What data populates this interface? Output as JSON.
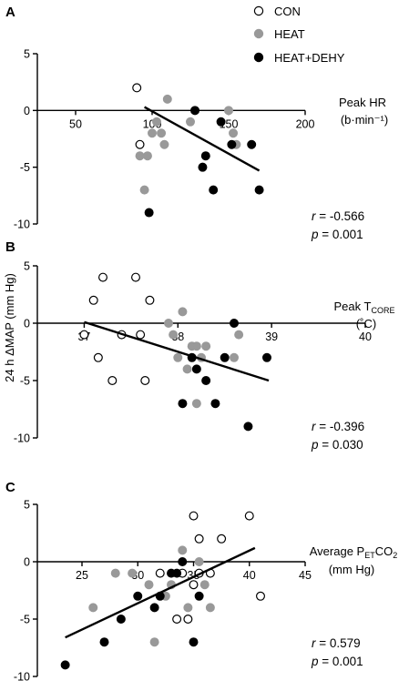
{
  "legend": [
    {
      "name": "CON",
      "fill": "#ffffff",
      "stroke": "#000000"
    },
    {
      "name": "HEAT",
      "fill": "#999999",
      "stroke": "#999999"
    },
    {
      "name": "HEAT+DEHY",
      "fill": "#000000",
      "stroke": "#000000"
    }
  ],
  "shared_ylabel": "24 h ΔMAP (mm Hg)",
  "chart_data": [
    {
      "type": "scatter",
      "panel": "A",
      "xlabel_line1": "Peak HR",
      "xlabel_line2": "(b·min⁻¹)",
      "xlim": [
        25,
        200
      ],
      "ylim": [
        -10,
        5
      ],
      "xticks": [
        50,
        100,
        150,
        200
      ],
      "yticks": [
        5,
        0,
        -5,
        -10
      ],
      "stat_r": "-0.566",
      "stat_p": "0.001",
      "fit": {
        "x": [
          95,
          170
        ],
        "y": [
          0.3,
          -5.3
        ]
      },
      "series": [
        {
          "name": "CON",
          "points": [
            [
              90,
              2
            ],
            [
              92,
              -3
            ]
          ]
        },
        {
          "name": "HEAT",
          "points": [
            [
              92,
              -4
            ],
            [
              95,
              -7
            ],
            [
              97,
              -4
            ],
            [
              100,
              -2
            ],
            [
              103,
              -1
            ],
            [
              106,
              -2
            ],
            [
              108,
              -3
            ],
            [
              110,
              1
            ],
            [
              125,
              -1
            ],
            [
              150,
              0
            ],
            [
              153,
              -2
            ],
            [
              155,
              -3
            ]
          ]
        },
        {
          "name": "HEAT+DEHY",
          "points": [
            [
              98,
              -9
            ],
            [
              128,
              0
            ],
            [
              133,
              -5
            ],
            [
              135,
              -4
            ],
            [
              140,
              -7
            ],
            [
              145,
              -1
            ],
            [
              152,
              -3
            ],
            [
              165,
              -3
            ],
            [
              170,
              -7
            ]
          ]
        }
      ]
    },
    {
      "type": "scatter",
      "panel": "B",
      "xlabel_main": "Peak T",
      "xlabel_sub": "CORE",
      "xlabel_line2": "(˚C)",
      "xlim": [
        36.5,
        40
      ],
      "ylim": [
        -10,
        5
      ],
      "xticks": [
        37,
        38,
        39,
        40
      ],
      "yticks": [
        5,
        0,
        -5,
        -10
      ],
      "stat_r": "-0.396",
      "stat_p": "0.030",
      "fit": {
        "x": [
          37.0,
          38.97
        ],
        "y": [
          0.1,
          -5.0
        ]
      },
      "series": [
        {
          "name": "CON",
          "points": [
            [
              37.0,
              -1
            ],
            [
              37.1,
              2
            ],
            [
              37.15,
              -3
            ],
            [
              37.2,
              4
            ],
            [
              37.3,
              -5
            ],
            [
              37.4,
              -1
            ],
            [
              37.55,
              4
            ],
            [
              37.6,
              -1
            ],
            [
              37.65,
              -5
            ],
            [
              37.7,
              2
            ]
          ]
        },
        {
          "name": "HEAT",
          "points": [
            [
              37.9,
              0
            ],
            [
              37.95,
              -1
            ],
            [
              38.0,
              -3
            ],
            [
              38.05,
              1
            ],
            [
              38.1,
              -4
            ],
            [
              38.15,
              -2
            ],
            [
              38.2,
              -7
            ],
            [
              38.2,
              -2
            ],
            [
              38.25,
              -3
            ],
            [
              38.3,
              -2
            ],
            [
              38.6,
              -3
            ],
            [
              38.65,
              -1
            ]
          ]
        },
        {
          "name": "HEAT+DEHY",
          "points": [
            [
              38.05,
              -7
            ],
            [
              38.15,
              -3
            ],
            [
              38.2,
              -4
            ],
            [
              38.3,
              -5
            ],
            [
              38.4,
              -7
            ],
            [
              38.5,
              -3
            ],
            [
              38.6,
              0
            ],
            [
              38.75,
              -9
            ],
            [
              38.95,
              -3
            ]
          ]
        }
      ]
    },
    {
      "type": "scatter",
      "panel": "C",
      "xlabel_main": "Average P",
      "xlabel_sub": "ET",
      "xlabel_tail": "CO",
      "xlabel_sub2": "2",
      "xlabel_line2": "(mm Hg)",
      "xlim": [
        21,
        45
      ],
      "ylim": [
        -10,
        5
      ],
      "xticks": [
        25,
        30,
        35,
        40,
        45
      ],
      "yticks": [
        5,
        0,
        -5,
        -10
      ],
      "stat_r": "0.579",
      "stat_p": "0.001",
      "fit": {
        "x": [
          23.5,
          40.5
        ],
        "y": [
          -6.6,
          1.2
        ]
      },
      "series": [
        {
          "name": "CON",
          "points": [
            [
              32,
              -1
            ],
            [
              33.5,
              -5
            ],
            [
              34,
              -1
            ],
            [
              34.5,
              -5
            ],
            [
              35,
              4
            ],
            [
              35,
              -2
            ],
            [
              35.5,
              2
            ],
            [
              35.5,
              -1
            ],
            [
              36.5,
              -1
            ],
            [
              37.5,
              2
            ],
            [
              40,
              4
            ],
            [
              41,
              -3
            ]
          ]
        },
        {
          "name": "HEAT",
          "points": [
            [
              26,
              -4
            ],
            [
              28,
              -1
            ],
            [
              29.5,
              -1
            ],
            [
              31,
              -2
            ],
            [
              31.5,
              -7
            ],
            [
              32.5,
              -3
            ],
            [
              33,
              -2
            ],
            [
              34,
              1
            ],
            [
              34.5,
              -4
            ],
            [
              35.5,
              0
            ],
            [
              36,
              -2
            ],
            [
              36.5,
              -4
            ]
          ]
        },
        {
          "name": "HEAT+DEHY",
          "points": [
            [
              23.5,
              -9
            ],
            [
              27,
              -7
            ],
            [
              28.5,
              -5
            ],
            [
              30,
              -3
            ],
            [
              31.5,
              -4
            ],
            [
              32,
              -3
            ],
            [
              33,
              -1
            ],
            [
              33.5,
              -1
            ],
            [
              34,
              0
            ],
            [
              35.5,
              -3
            ],
            [
              35,
              -7
            ]
          ]
        }
      ]
    }
  ]
}
